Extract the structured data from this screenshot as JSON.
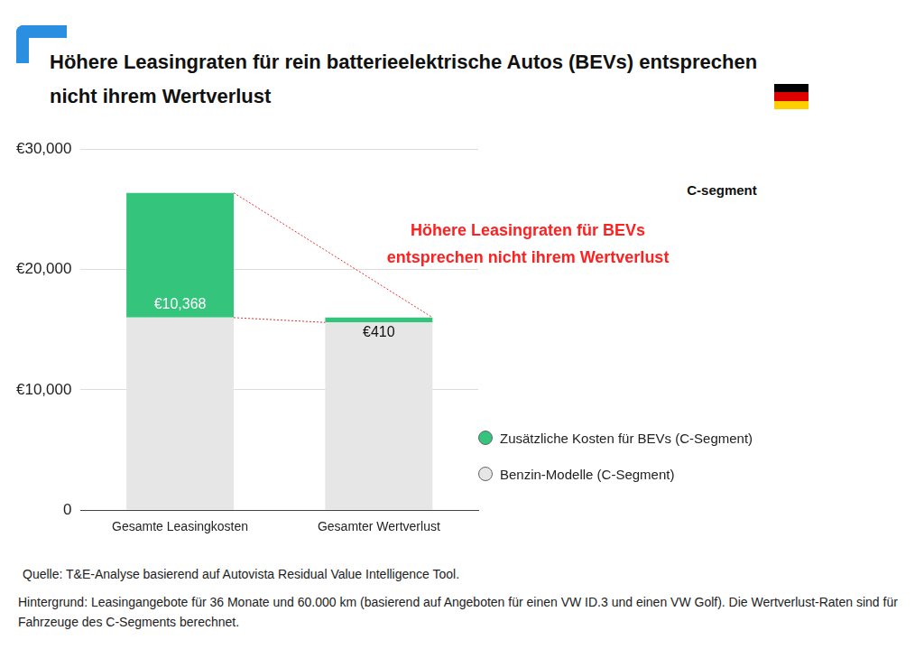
{
  "chart_data": {
    "type": "bar",
    "title": "Höhere Leasingraten für rein batterieelektrische Autos (BEVs) entsprechen nicht ihrem Wertverlust",
    "subtitle": "C-segment",
    "annotation": [
      "Höhere Leasingraten für BEVs",
      "entsprechen nicht ihrem Wertverlust"
    ],
    "source": "Quelle: T&E-Analyse basierend auf  Autovista Residual Value Intelligence Tool.",
    "note": "Hintergrund: Leasingangebote für 36 Monate und 60.000 km (basierend auf Angeboten für einen VW ID.3 und einen VW Golf). Die Wertverlust-Raten sind für Fahrzeuge des C-Segments berechnet.",
    "categories": [
      "Gesamte Leasingkosten",
      "Gesamter Wertverlust"
    ],
    "series": [
      {
        "name": "Benzin-Modelle (C-Segment)",
        "color": "#e6e6e6",
        "values": [
          16000,
          15600
        ]
      },
      {
        "name": "Zusätzliche Kosten für BEVs (C-Segment)",
        "color": "#35c47c",
        "values": [
          10368,
          410
        ],
        "data_labels": true,
        "value_labels": [
          "€10,368",
          "€410"
        ]
      }
    ],
    "stacked": true,
    "ylim": [
      0,
      30000
    ],
    "yticks": [
      0,
      {
        "value": 10000,
        "label": "€10,000"
      },
      {
        "value": 20000,
        "label": "€20,000"
      },
      {
        "value": 30000,
        "label": "€30,000"
      }
    ],
    "grid": true,
    "legend": "right"
  }
}
